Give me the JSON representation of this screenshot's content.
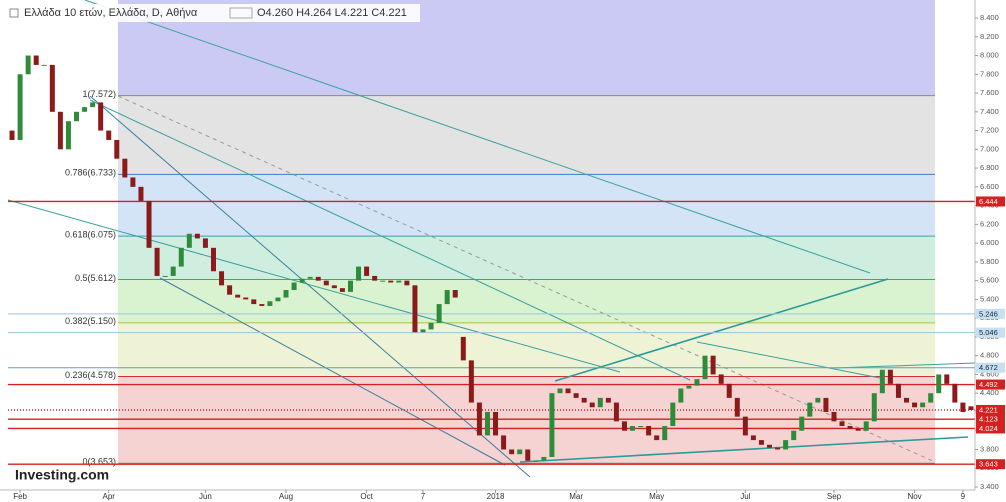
{
  "chart_data": {
    "type": "candlestick",
    "title": "Ελλάδα 10 ετών, Ελλάδα, D, Αθήνα",
    "ohlc": "O4.260 H4.264 L4.221 C4.221",
    "logo": "Investing.com",
    "categories": [
      null,
      "Feb",
      null,
      null,
      null,
      null,
      null,
      null,
      null,
      null,
      null,
      null,
      "Apr",
      null,
      null,
      null,
      null,
      null,
      null,
      null,
      null,
      null,
      null,
      null,
      "Jun",
      null,
      null,
      null,
      null,
      null,
      null,
      null,
      null,
      null,
      "Aug",
      null,
      null,
      null,
      null,
      null,
      null,
      null,
      null,
      null,
      "Oct",
      null,
      null,
      null,
      null,
      null,
      null,
      "7",
      null,
      null,
      null,
      null,
      null,
      null,
      null,
      null,
      "2018",
      null,
      null,
      null,
      null,
      null,
      null,
      null,
      null,
      null,
      "Mar",
      null,
      null,
      null,
      null,
      null,
      null,
      null,
      null,
      null,
      "May",
      null,
      null,
      null,
      null,
      null,
      null,
      null,
      null,
      null,
      null,
      "Jul",
      null,
      null,
      null,
      null,
      null,
      null,
      null,
      null,
      null,
      null,
      "Sep",
      null,
      null,
      null,
      null,
      null,
      null,
      null,
      null,
      null,
      "Nov",
      null,
      null,
      null,
      null,
      null,
      "9",
      null
    ],
    "open": [
      7.2,
      7.1,
      7.8,
      8.0,
      7.9,
      7.9,
      7.4,
      7.0,
      7.3,
      7.4,
      7.45,
      7.5,
      7.2,
      7.1,
      6.9,
      6.7,
      6.6,
      6.45,
      5.95,
      5.65,
      5.65,
      5.75,
      5.95,
      6.1,
      6.05,
      5.95,
      5.7,
      5.55,
      5.45,
      5.42,
      5.4,
      5.35,
      5.33,
      5.38,
      5.42,
      5.5,
      5.58,
      5.62,
      5.64,
      5.6,
      5.55,
      5.52,
      5.48,
      5.6,
      5.75,
      5.65,
      5.6,
      5.6,
      5.58,
      5.6,
      5.55,
      5.05,
      5.08,
      5.15,
      5.35,
      5.5,
      5.0,
      4.75,
      4.3,
      3.95,
      4.2,
      3.95,
      3.8,
      3.75,
      3.8,
      3.68,
      3.68,
      3.72,
      4.4,
      4.45,
      4.4,
      4.35,
      4.3,
      4.25,
      4.35,
      4.3,
      4.1,
      4.0,
      4.05,
      4.05,
      3.95,
      3.9,
      4.05,
      4.3,
      4.45,
      4.48,
      4.55,
      4.8,
      4.6,
      4.5,
      4.35,
      4.15,
      3.95,
      3.9,
      3.85,
      3.82,
      3.8,
      3.9,
      4.0,
      4.15,
      4.3,
      4.35,
      4.2,
      4.1,
      4.05,
      4.02,
      4.0,
      4.1,
      4.4,
      4.65,
      4.5,
      4.35,
      4.3,
      4.25,
      4.3,
      4.4,
      4.6,
      4.5,
      4.3,
      4.26
    ],
    "close": [
      7.1,
      7.8,
      8.0,
      7.9,
      7.9,
      7.4,
      7.0,
      7.3,
      7.4,
      7.45,
      7.5,
      7.2,
      7.1,
      6.9,
      6.7,
      6.6,
      6.45,
      5.95,
      5.65,
      5.65,
      5.75,
      5.95,
      6.1,
      6.05,
      5.95,
      5.7,
      5.55,
      5.45,
      5.42,
      5.4,
      5.35,
      5.33,
      5.38,
      5.42,
      5.5,
      5.58,
      5.62,
      5.64,
      5.6,
      5.55,
      5.52,
      5.48,
      5.6,
      5.75,
      5.65,
      5.6,
      5.6,
      5.58,
      5.6,
      5.55,
      5.05,
      5.08,
      5.15,
      5.35,
      5.5,
      5.42,
      4.75,
      4.3,
      3.95,
      4.2,
      3.95,
      3.8,
      3.75,
      3.8,
      3.68,
      3.68,
      3.72,
      4.4,
      4.45,
      4.4,
      4.35,
      4.3,
      4.25,
      4.35,
      4.3,
      4.1,
      4.0,
      4.05,
      4.05,
      3.95,
      3.9,
      4.05,
      4.3,
      4.45,
      4.48,
      4.55,
      4.8,
      4.6,
      4.5,
      4.35,
      4.15,
      3.95,
      3.9,
      3.85,
      3.82,
      3.8,
      3.9,
      4.0,
      4.15,
      4.3,
      4.35,
      4.2,
      4.1,
      4.05,
      4.02,
      4.0,
      4.1,
      4.4,
      4.65,
      4.5,
      4.35,
      4.3,
      4.25,
      4.3,
      4.4,
      4.6,
      4.5,
      4.3,
      4.2,
      4.221
    ],
    "up_color": "#2e8b3a",
    "down_color": "#8b1a1a",
    "ylim": [
      3.368,
      8.592
    ],
    "yticks": [
      {
        "value": 3.4,
        "label": "3.400"
      },
      {
        "value": 3.6,
        "label": "3.600"
      },
      {
        "value": 3.8,
        "label": "3.800"
      },
      {
        "value": 4.0,
        "label": "4.000"
      },
      {
        "value": 4.2,
        "label": "4.200"
      },
      {
        "value": 4.4,
        "label": "4.400"
      },
      {
        "value": 4.6,
        "label": "4.600"
      },
      {
        "value": 4.8,
        "label": "4.800"
      },
      {
        "value": 5.0,
        "label": "5.000"
      },
      {
        "value": 5.2,
        "label": "5.200"
      },
      {
        "value": 5.4,
        "label": "5.400"
      },
      {
        "value": 5.6,
        "label": "5.600"
      },
      {
        "value": 5.8,
        "label": "5.800"
      },
      {
        "value": 6.0,
        "label": "6.000"
      },
      {
        "value": 6.2,
        "label": "6.200"
      },
      {
        "value": 6.4,
        "label": "6.400"
      },
      {
        "value": 6.6,
        "label": "6.600"
      },
      {
        "value": 6.8,
        "label": "6.800"
      },
      {
        "value": 7.0,
        "label": "7.000"
      },
      {
        "value": 7.2,
        "label": "7.200"
      },
      {
        "value": 7.4,
        "label": "7.400"
      },
      {
        "value": 7.6,
        "label": "7.600"
      },
      {
        "value": 7.8,
        "label": "7.800"
      },
      {
        "value": 8.0,
        "label": "8.000"
      },
      {
        "value": 8.2,
        "label": "8.200"
      },
      {
        "value": 8.4,
        "label": "8.400"
      }
    ],
    "fib": {
      "levels": [
        7.572,
        6.733,
        6.075,
        5.612,
        5.15,
        4.578,
        3.653
      ],
      "labels": [
        "1(7.572)",
        "0.786(6.733)",
        "0.618(6.075)",
        "0.5(5.612)",
        "0.382(5.150)",
        "0.236(4.578)",
        "0(3.653)"
      ],
      "band_colors": [
        "#cacaf4",
        "#e3e3e3",
        "#d2e4f6",
        "#cfeee0",
        "#d9f2cf",
        "#edf3d4",
        "#f5d3d3"
      ],
      "line_colors": [
        "#8a8a8a",
        "#3b7fc4",
        "#3aa0b0",
        "#3cb04a",
        "#a8c43a",
        "#d03030",
        "#8a8a8a"
      ]
    },
    "hlines": [
      {
        "value": 6.444,
        "color": "#d42020",
        "label_color": "#d42020"
      },
      {
        "value": 5.246,
        "color": "#9cc4dc",
        "label_color": "#c6e0f0"
      },
      {
        "value": 5.046,
        "color": "#9cc4dc",
        "label_color": "#c6e0f0"
      },
      {
        "value": 4.672,
        "color": "#5aa0d0",
        "label_color": "#c6e0f0"
      },
      {
        "value": 4.492,
        "color": "#d42020",
        "label_color": "#d42020"
      },
      {
        "value": 4.221,
        "color": "#d42020",
        "label_color": "#d42020"
      },
      {
        "value": 4.123,
        "color": "#d42020",
        "label_color": "#d42020"
      },
      {
        "value": 4.024,
        "color": "#d42020",
        "label_color": "#d42020"
      },
      {
        "value": 3.643,
        "color": "#d42020",
        "label_color": "#d42020"
      }
    ]
  }
}
